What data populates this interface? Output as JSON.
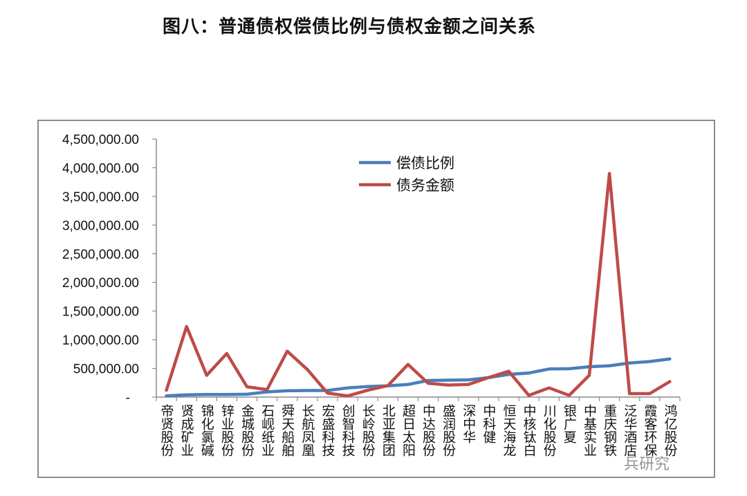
{
  "page": {
    "title": "图八：普通债权偿债比例与债权金额之间关系",
    "watermark": "兵研究"
  },
  "chart_data": {
    "type": "line",
    "title": "",
    "xlabel": "",
    "ylabel": "",
    "ylim": [
      0,
      4500000
    ],
    "yticks": [
      0,
      500000,
      1000000,
      1500000,
      2000000,
      2500000,
      3000000,
      3500000,
      4000000,
      4500000
    ],
    "ytick_labels": [
      "-",
      "500,000.00",
      "1,000,000.00",
      "1,500,000.00",
      "2,000,000.00",
      "2,500,000.00",
      "3,000,000.00",
      "3,500,000.00",
      "4,000,000.00",
      "4,500,000.00"
    ],
    "grid": false,
    "legend": "top-center",
    "categories": [
      "帝贤股份",
      "贤成矿业",
      "锦化氯碱",
      "锌业股份",
      "金城股份",
      "石岘纸业",
      "舜天船舶",
      "长航凤凰",
      "宏盛科技",
      "创智科技",
      "长岭股份",
      "北亚集团",
      "超日太阳",
      "中达股份",
      "盛润股份",
      "深中华",
      "中科健",
      "恒天海龙",
      "中核钛白",
      "川化股份",
      "银广夏",
      "中基实业",
      "重庆钢铁",
      "泛华酒店",
      "霞客环保",
      "鸿亿股份"
    ],
    "series": [
      {
        "name": "偿债比例",
        "color": "#4a7ebb",
        "values": [
          20000,
          40000,
          45000,
          45000,
          50000,
          90000,
          110000,
          115000,
          115000,
          160000,
          185000,
          195000,
          220000,
          290000,
          295000,
          300000,
          340000,
          395000,
          420000,
          490000,
          495000,
          530000,
          545000,
          595000,
          620000,
          665000
        ]
      },
      {
        "name": "债务金额",
        "color": "#be4b48",
        "values": [
          120000,
          1230000,
          380000,
          760000,
          180000,
          130000,
          800000,
          480000,
          70000,
          20000,
          120000,
          200000,
          570000,
          240000,
          210000,
          220000,
          340000,
          450000,
          30000,
          160000,
          30000,
          380000,
          3900000,
          60000,
          60000,
          270000
        ]
      }
    ]
  }
}
